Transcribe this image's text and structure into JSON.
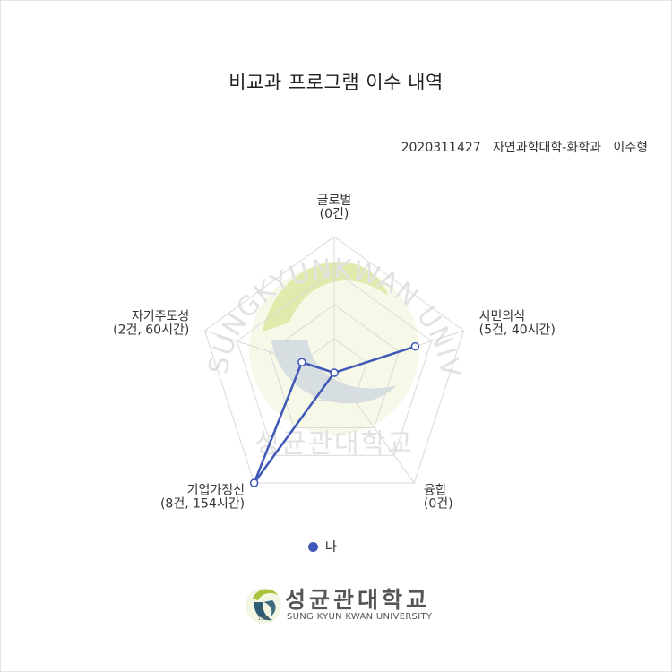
{
  "title": "비교과 프로그램 이수 내역",
  "student_info": "2020311427   자연과학대학-화학과   이주형",
  "legend_label": "나",
  "colors": {
    "series": "#3f57b6",
    "grid": "#d9d9d9",
    "watermark_green": "#c9d86a",
    "watermark_gray": "#cccccc"
  },
  "watermark": {
    "arc_text": "SUNGKYUNKWAN UNIVERSITY",
    "korean_text": "성균관대학교"
  },
  "logo": {
    "korean": "성균관대학교",
    "english": "SUNG KYUN KWAN UNIVERSITY",
    "year": "1398"
  },
  "chart_data": {
    "type": "radar",
    "title": "비교과 프로그램 이수 내역",
    "axes": [
      {
        "name": "글로벌",
        "detail": "(0건)",
        "value": 0
      },
      {
        "name": "시민의식",
        "detail": "(5건, 40시간)",
        "value": 5
      },
      {
        "name": "융합",
        "detail": "(0건)",
        "value": 0
      },
      {
        "name": "기업가정신",
        "detail": "(8건, 154시간)",
        "value": 8
      },
      {
        "name": "자기주도성",
        "detail": "(2건, 60시간)",
        "value": 2
      }
    ],
    "max": 8,
    "grid_levels": 4,
    "series": [
      {
        "name": "나",
        "values": [
          0,
          5,
          0,
          8,
          2
        ]
      }
    ]
  }
}
